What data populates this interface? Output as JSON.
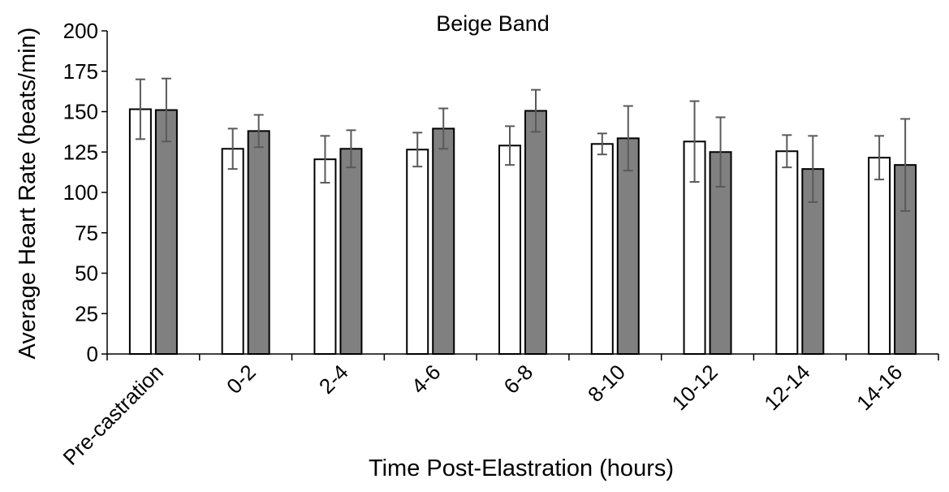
{
  "chart_data": {
    "type": "bar",
    "title": "Beige Band",
    "xlabel": "Time Post-Elastration (hours)",
    "ylabel": "Average Heart Rate (beats/min)",
    "ylim": [
      0,
      200
    ],
    "yticks": [
      0,
      25,
      50,
      75,
      100,
      125,
      150,
      175,
      200
    ],
    "categories": [
      "Pre-castration",
      "0-2",
      "2-4",
      "4-6",
      "6-8",
      "8-10",
      "10-12",
      "12-14",
      "14-16"
    ],
    "legend": "none",
    "grid": false,
    "series": [
      {
        "color": "#ffffff",
        "values": [
          151.5,
          127,
          120.5,
          126.5,
          129,
          130,
          131.5,
          125.5,
          121.5
        ],
        "error": [
          18.5,
          12.5,
          14.5,
          10.5,
          12,
          6.5,
          25,
          10,
          13.5
        ]
      },
      {
        "color": "#808080",
        "values": [
          151,
          138,
          127,
          139.5,
          150.5,
          133.5,
          125,
          114.5,
          117
        ],
        "error": [
          19.5,
          10,
          11.5,
          12.5,
          13,
          20,
          21.5,
          20.5,
          28.5
        ]
      }
    ]
  }
}
